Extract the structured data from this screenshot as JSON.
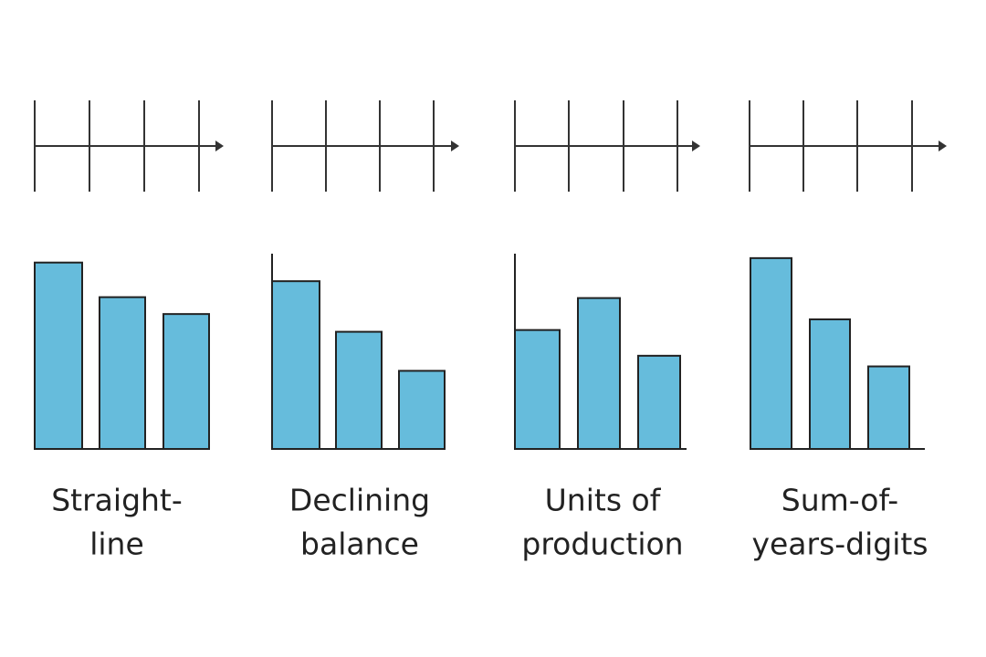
{
  "chart_data": [
    {
      "type": "bar",
      "title": [
        "Straight-",
        "line"
      ],
      "categories": [
        null,
        null,
        null
      ],
      "values": [
        210,
        171,
        152
      ],
      "color": "#66bcdc",
      "ylim": [
        0,
        220
      ]
    },
    {
      "type": "bar",
      "title": [
        "Declining",
        "balance"
      ],
      "categories": [
        null,
        null,
        null
      ],
      "values": [
        189,
        132,
        88
      ],
      "color": "#66bcdc",
      "ylim": [
        0,
        220
      ]
    },
    {
      "type": "bar",
      "title": [
        "Units of",
        "production"
      ],
      "categories": [
        null,
        null,
        null
      ],
      "values": [
        134,
        170,
        105
      ],
      "color": "#66bcdc",
      "ylim": [
        0,
        220
      ]
    },
    {
      "type": "bar",
      "title": [
        "Sum-of-",
        "years-digits"
      ],
      "categories": [
        null,
        null,
        null
      ],
      "values": [
        215,
        146,
        93
      ],
      "color": "#66bcdc",
      "ylim": [
        0,
        220
      ]
    }
  ]
}
